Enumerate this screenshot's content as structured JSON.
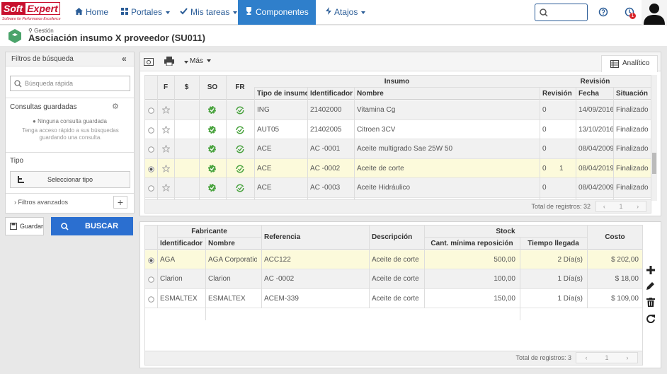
{
  "nav": {
    "logo_soft": "Soft",
    "logo_expert": "Expert",
    "logo_tagline": "Software for Performance Excellence",
    "items": [
      "Home",
      "Portales",
      "Mis tareas",
      "Componentes",
      "Atajos"
    ],
    "badge": "1"
  },
  "page": {
    "breadcrumb": "Gestión",
    "title": "Asociación insumo X proveedor (SU011)"
  },
  "sidebar": {
    "title": "Filtros de búsqueda",
    "search_placeholder": "Búsqueda rápida",
    "saved_title": "Consultas guardadas",
    "saved_empty": "Ninguna consulta guardada",
    "saved_hint": "Tenga acceso rápido a sus búsquedas guardando una consulta.",
    "type_title": "Tipo",
    "type_button": "Seleccionar tipo",
    "advanced": "Filtros avanzados",
    "save_button": "Guardar",
    "search_button": "BUSCAR"
  },
  "toolbar": {
    "more": "Más",
    "analytic": "Analítico"
  },
  "insumos": {
    "groups": {
      "insumo": "Insumo",
      "revision": "Revisión"
    },
    "columns": {
      "f": "F",
      "price": "$",
      "so": "SO",
      "fr": "FR",
      "tipo": "Tipo de insumo",
      "identificador": "Identificador",
      "nombre": "Nombre",
      "revision": "Revisión",
      "fecha": "Fecha",
      "situacion": "Situación"
    },
    "rows": [
      {
        "tipo": "ING",
        "identificador": "21402000",
        "nombre": "Vitamina Cg",
        "revision": "0",
        "fecha": "14/09/2016",
        "situacion": "Finalizado"
      },
      {
        "tipo": "AUT05",
        "identificador": "21402005",
        "nombre": "Citroen 3CV",
        "revision": "0",
        "fecha": "13/10/2016",
        "situacion": "Finalizado"
      },
      {
        "tipo": "ACE",
        "identificador": "AC -0001",
        "nombre": "Aceite multigrado Sae 25W 50",
        "revision": "0",
        "fecha": "08/04/2009",
        "situacion": "Finalizado"
      },
      {
        "tipo": "ACE",
        "identificador": "AC -0002",
        "nombre": "Aceite de corte",
        "revision": "0",
        "revision_detalle": "1",
        "fecha": "08/04/2019",
        "situacion": "Finalizado"
      },
      {
        "tipo": "ACE",
        "identificador": "AC -0003",
        "nombre": "Aceite Hidráulico",
        "revision": "0",
        "fecha": "08/04/2009",
        "situacion": "Finalizado"
      }
    ],
    "total": "Total de registros: 32",
    "page": "1"
  },
  "proveedores": {
    "groups": {
      "fabricante": "Fabricante",
      "stock": "Stock"
    },
    "columns": {
      "identificador": "Identificador",
      "nombre": "Nombre",
      "referencia": "Referencia",
      "descripcion": "Descripción",
      "cantidad": "Cant. mínima reposición",
      "tiempo": "Tiempo llegada",
      "costo": "Costo"
    },
    "rows": [
      {
        "identificador": "ÀGA",
        "nombre": "AGA Corporation",
        "referencia": "ACC122",
        "descripcion": "Aceite de corte",
        "cantidad": "500,00",
        "tiempo": "2 Día(s)",
        "costo": "$ 202,00"
      },
      {
        "identificador": "Clarion",
        "nombre": "Clarion",
        "referencia": "AC -0002",
        "descripcion": "Aceite de corte",
        "cantidad": "100,00",
        "tiempo": "1 Día(s)",
        "costo": "$ 18,00"
      },
      {
        "identificador": "ESMALTEX",
        "nombre": "ESMALTEX",
        "referencia": "ACEM-339",
        "descripcion": "Aceite de corte",
        "cantidad": "150,00",
        "tiempo": "1 Día(s)",
        "costo": "$ 109,00"
      }
    ],
    "total": "Total de registros: 3",
    "page": "1"
  }
}
